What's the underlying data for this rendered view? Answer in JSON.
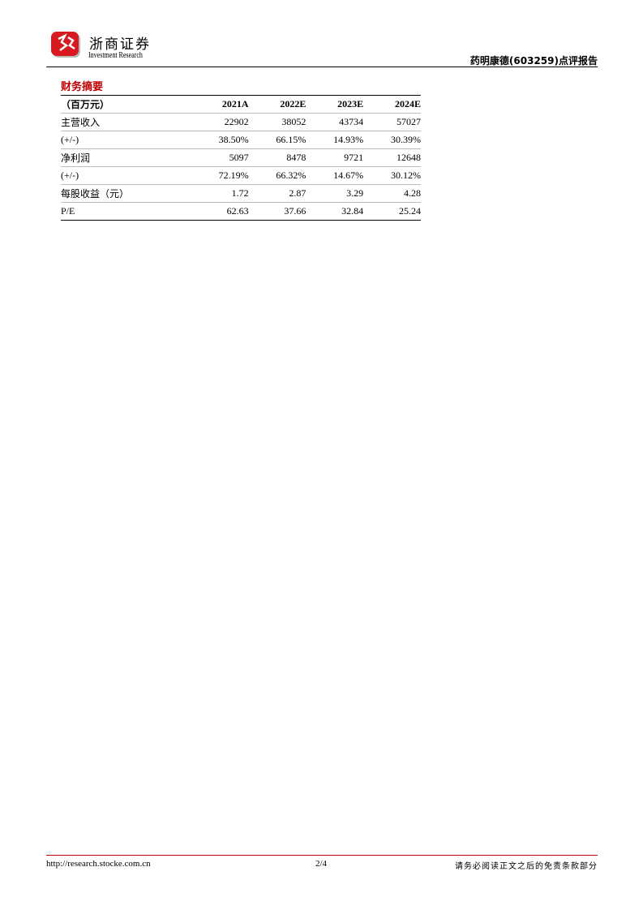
{
  "header": {
    "brand_cn": "浙商证券",
    "brand_en": "Investment Research",
    "report_title": "药明康德(603259)点评报告",
    "logo_color": "#d71920"
  },
  "section_title": "财务摘要",
  "table": {
    "columns": [
      "（百万元）",
      "2021A",
      "2022E",
      "2023E",
      "2024E"
    ],
    "rows": [
      [
        "主营收入",
        "22902",
        "38052",
        "43734",
        "57027"
      ],
      [
        "(+/-)",
        "38.50%",
        "66.15%",
        "14.93%",
        "30.39%"
      ],
      [
        "净利润",
        "5097",
        "8478",
        "9721",
        "12648"
      ],
      [
        "(+/-)",
        "72.19%",
        "66.32%",
        "14.67%",
        "30.12%"
      ],
      [
        "每股收益（元）",
        "1.72",
        "2.87",
        "3.29",
        "4.28"
      ],
      [
        "P/E",
        "62.63",
        "37.66",
        "32.84",
        "25.24"
      ]
    ]
  },
  "footer": {
    "url": "http://research.stocke.com.cn",
    "page": "2/4",
    "disclaimer": "请务必阅读正文之后的免责条款部分"
  }
}
